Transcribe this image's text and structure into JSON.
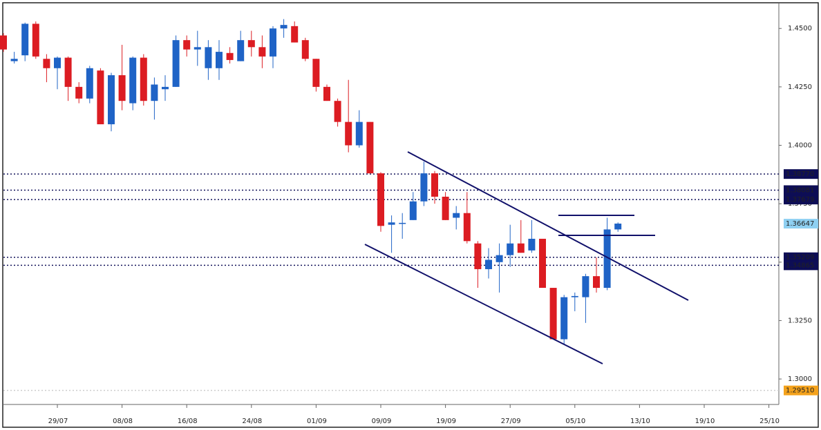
{
  "chart_data": {
    "type": "candlestick",
    "categories": [
      null,
      null,
      null,
      null,
      null,
      "29/07",
      null,
      null,
      null,
      null,
      null,
      "08/08",
      null,
      null,
      null,
      null,
      null,
      "16/08",
      null,
      null,
      null,
      null,
      null,
      "24/08",
      null,
      null,
      null,
      null,
      null,
      "01/09",
      null,
      null,
      null,
      null,
      null,
      "09/09",
      null,
      null,
      null,
      null,
      null,
      "19/09",
      null,
      null,
      null,
      null,
      null,
      "27/09",
      null,
      null,
      null,
      null,
      null,
      "05/10",
      null,
      null,
      null,
      null,
      null,
      "13/10",
      null,
      null,
      null,
      null,
      null,
      "19/10",
      null,
      null,
      null,
      null,
      null,
      "25/10"
    ],
    "open": [
      1.447,
      1.436,
      1.4385,
      1.452,
      1.437,
      1.433,
      1.4375,
      1.425,
      1.42,
      1.432,
      1.409,
      1.43,
      1.418,
      1.4375,
      1.419,
      1.424,
      1.425,
      1.445,
      1.441,
      1.433,
      1.433,
      1.4395,
      1.436,
      1.445,
      1.442,
      1.438,
      1.45,
      1.451,
      1.445,
      1.437,
      1.425,
      1.419,
      1.41,
      1.4,
      1.41,
      1.388,
      1.366,
      1.3666,
      1.368,
      1.376,
      1.388,
      1.378,
      1.369,
      1.371,
      1.358,
      1.347,
      1.35,
      1.353,
      1.358,
      1.355,
      1.36,
      1.339,
      1.317,
      1.335,
      1.335,
      1.344,
      1.339,
      1.364,
      null,
      null,
      null,
      null,
      null,
      null,
      null,
      null,
      null,
      null,
      null,
      null,
      null,
      null
    ],
    "high": [
      1.448,
      1.44,
      1.4525,
      1.453,
      1.439,
      1.438,
      1.438,
      1.427,
      1.434,
      1.433,
      1.431,
      1.443,
      1.438,
      1.439,
      1.429,
      1.43,
      1.447,
      1.447,
      1.449,
      1.445,
      1.445,
      1.442,
      1.449,
      1.449,
      1.447,
      1.451,
      1.454,
      1.453,
      1.446,
      1.437,
      1.426,
      1.42,
      1.428,
      1.415,
      1.41,
      1.3885,
      1.37,
      1.371,
      1.38,
      1.393,
      1.389,
      1.38,
      1.374,
      1.38,
      1.359,
      1.356,
      1.358,
      1.366,
      1.368,
      1.368,
      1.36,
      1.339,
      1.336,
      1.337,
      1.345,
      1.352,
      1.369,
      1.367,
      null,
      null,
      null,
      null,
      null,
      null,
      null,
      null,
      null,
      null,
      null,
      null,
      null,
      null
    ],
    "low": [
      1.44,
      1.435,
      1.436,
      1.437,
      1.427,
      1.424,
      1.419,
      1.418,
      1.418,
      1.409,
      1.406,
      1.415,
      1.415,
      1.417,
      1.411,
      1.419,
      1.425,
      1.438,
      1.434,
      1.428,
      1.428,
      1.435,
      1.436,
      1.438,
      1.433,
      1.433,
      1.446,
      1.444,
      1.436,
      1.423,
      1.419,
      1.408,
      1.397,
      1.399,
      1.388,
      1.363,
      1.354,
      1.36,
      1.368,
      1.374,
      1.375,
      1.368,
      1.364,
      1.358,
      1.339,
      1.343,
      1.337,
      1.348,
      1.354,
      1.354,
      1.339,
      1.317,
      1.315,
      1.329,
      1.324,
      1.337,
      1.338,
      1.363,
      null,
      null,
      null,
      null,
      null,
      null,
      null,
      null,
      null,
      null,
      null,
      null,
      null,
      null
    ],
    "close": [
      1.441,
      1.437,
      1.452,
      1.438,
      1.433,
      1.4375,
      1.425,
      1.42,
      1.433,
      1.409,
      1.43,
      1.419,
      1.4375,
      1.419,
      1.426,
      1.425,
      1.445,
      1.441,
      1.442,
      1.442,
      1.44,
      1.4365,
      1.445,
      1.442,
      1.438,
      1.45,
      1.4515,
      1.444,
      1.437,
      1.425,
      1.419,
      1.41,
      1.4,
      1.41,
      1.388,
      1.3655,
      1.367,
      1.3668,
      1.376,
      1.388,
      1.378,
      1.368,
      1.371,
      1.359,
      1.347,
      1.351,
      1.353,
      1.358,
      1.354,
      1.36,
      1.339,
      1.317,
      1.335,
      1.3355,
      1.344,
      1.339,
      1.364,
      1.3665,
      null,
      null,
      null,
      null,
      null,
      null,
      null,
      null,
      null,
      null,
      null,
      null,
      null,
      null
    ],
    "up_color": "#1f63c6",
    "down_color": "#dc1c22",
    "ylim": [
      1.2891,
      1.4607
    ],
    "yticks": [
      {
        "value": 1.3,
        "label": "1.3000"
      },
      {
        "value": 1.325,
        "label": "1.3250"
      },
      {
        "value": 1.35,
        "label": "1.3500"
      },
      {
        "value": 1.375,
        "label": "1.3750"
      },
      {
        "value": 1.4,
        "label": "1.4000"
      },
      {
        "value": 1.425,
        "label": "1.4250"
      },
      {
        "value": 1.45,
        "label": "1.4500"
      }
    ],
    "levels": [
      {
        "value": 1.3877,
        "label": "1.38770",
        "color": "#0d0d55",
        "line": true
      },
      {
        "value": 1.38081,
        "label": "1.38081",
        "color": "#0d0d55",
        "line": true
      },
      {
        "value": 1.37679,
        "label": "1.37679",
        "color": "#0d0d55",
        "line": true
      },
      {
        "value": 1.36647,
        "label": "1.36647",
        "color": "#8fd0f2",
        "line": false
      },
      {
        "value": 1.35209,
        "label": "1.35209",
        "color": "#0d0d55",
        "line": true
      },
      {
        "value": 1.34865,
        "label": "1.34865",
        "color": "#0d0d55",
        "line": true
      },
      {
        "value": 1.2951,
        "label": "1.29510",
        "color": "#f4a21c",
        "line": true
      }
    ]
  }
}
